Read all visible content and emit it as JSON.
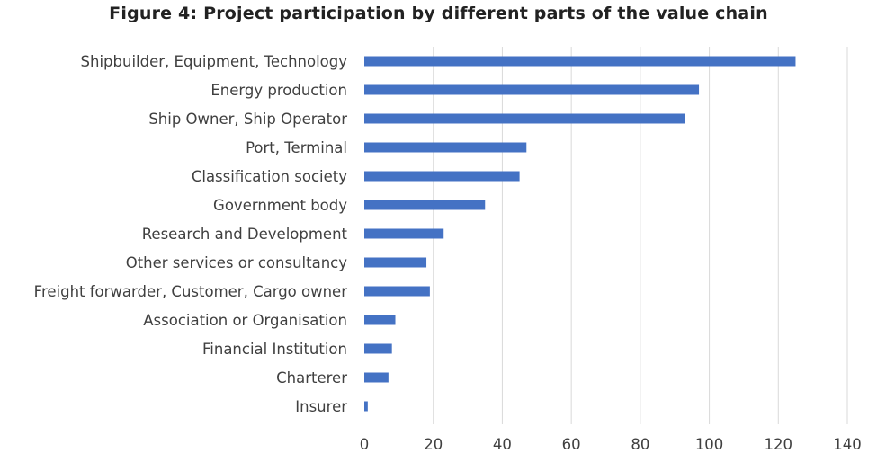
{
  "chart_data": {
    "type": "bar",
    "orientation": "horizontal",
    "title": "Figure 4: Project participation by different parts of the value chain",
    "xlabel": "",
    "ylabel": "",
    "xlim": [
      0,
      140
    ],
    "xticks": [
      0,
      20,
      40,
      60,
      80,
      100,
      120,
      140
    ],
    "grid": "vertical",
    "legend": "none",
    "bar_color": "#4472c4",
    "categories": [
      "Shipbuilder, Equipment, Technology",
      "Energy production",
      "Ship Owner, Ship Operator",
      "Port, Terminal",
      "Classification society",
      "Government body",
      "Research and Development",
      "Other services or consultancy",
      "Freight forwarder, Customer, Cargo owner",
      "Association or Organisation",
      "Financial Institution",
      "Charterer",
      "Insurer"
    ],
    "values": [
      125,
      97,
      93,
      47,
      45,
      35,
      23,
      18,
      19,
      9,
      8,
      7,
      1
    ]
  }
}
